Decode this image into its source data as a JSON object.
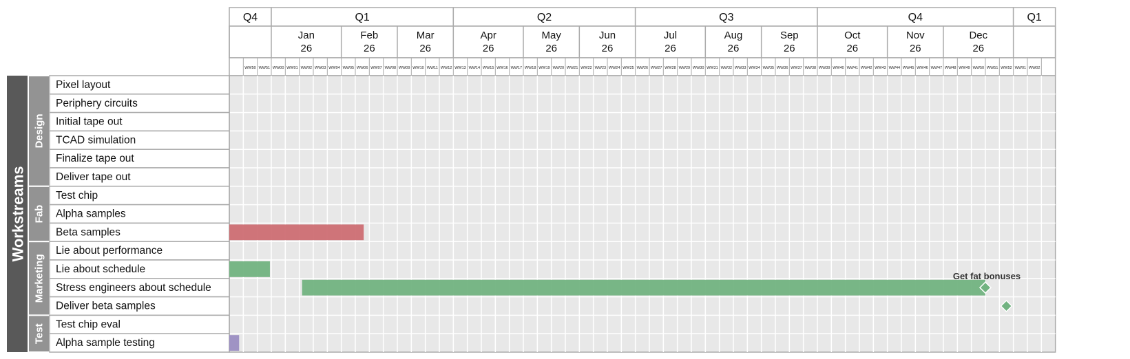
{
  "chart_data": {
    "type": "gantt",
    "row_label": "Workstreams",
    "quarters": [
      {
        "label": "Q4",
        "start": 0,
        "end": 3
      },
      {
        "label": "Q1",
        "start": 3,
        "end": 16
      },
      {
        "label": "Q2",
        "start": 16,
        "end": 29
      },
      {
        "label": "Q3",
        "start": 29,
        "end": 42
      },
      {
        "label": "Q4",
        "start": 42,
        "end": 56
      },
      {
        "label": "Q1",
        "start": 56,
        "end": 59
      }
    ],
    "months": [
      {
        "label": "Jan\n26",
        "start": 3,
        "end": 8
      },
      {
        "label": "Feb\n26",
        "start": 8,
        "end": 12
      },
      {
        "label": "Mar\n26",
        "start": 12,
        "end": 16
      },
      {
        "label": "Apr\n26",
        "start": 16,
        "end": 21
      },
      {
        "label": "May\n26",
        "start": 21,
        "end": 25
      },
      {
        "label": "Jun\n26",
        "start": 25,
        "end": 29
      },
      {
        "label": "Jul\n26",
        "start": 29,
        "end": 34
      },
      {
        "label": "Aug\n26",
        "start": 34,
        "end": 38
      },
      {
        "label": "Sep\n26",
        "start": 38,
        "end": 42
      },
      {
        "label": "Oct\n26",
        "start": 42,
        "end": 47
      },
      {
        "label": "Nov\n26",
        "start": 47,
        "end": 51
      },
      {
        "label": "Dec\n26",
        "start": 51,
        "end": 56
      }
    ],
    "weeks": [
      "",
      "WW50",
      "WW51",
      "WW00",
      "WW01",
      "WW02",
      "WW03",
      "WW04",
      "WW05",
      "WW06",
      "WW07",
      "WW08",
      "WW09",
      "WW10",
      "WW11",
      "WW12",
      "WW13",
      "WW14",
      "WW15",
      "WW16",
      "WW17",
      "WW18",
      "WW19",
      "WW20",
      "WW21",
      "WW22",
      "WW23",
      "WW24",
      "WW25",
      "WW26",
      "WW27",
      "WW28",
      "WW29",
      "WW30",
      "WW31",
      "WW32",
      "WW33",
      "WW34",
      "WW35",
      "WW36",
      "WW37",
      "WW38",
      "WW39",
      "WW40",
      "WW41",
      "WW42",
      "WW43",
      "WW44",
      "WW45",
      "WW46",
      "WW47",
      "WW48",
      "WW49",
      "WW50",
      "WW51",
      "WW52",
      "WW01",
      "WW02",
      ""
    ],
    "groups": [
      {
        "name": "Design",
        "tasks": [
          "Pixel layout",
          "Periphery circuits",
          "Initial tape out",
          "TCAD simulation",
          "Finalize tape out",
          "Deliver tape out"
        ]
      },
      {
        "name": "Fab",
        "tasks": [
          "Test chip",
          "Alpha samples",
          "Beta samples"
        ]
      },
      {
        "name": "Marketing",
        "tasks": [
          "Lie about performance",
          "Lie about schedule",
          "Stress engineers about schedule",
          "Deliver beta samples"
        ]
      },
      {
        "name": "Test",
        "tasks": [
          "Test chip eval",
          "Alpha sample testing"
        ]
      }
    ],
    "bars": [
      {
        "task": "Beta samples",
        "start": 0,
        "end": 9.6,
        "color": "#cd6e73"
      },
      {
        "task": "Lie about schedule",
        "start": 0,
        "end": 2.9,
        "color": "#72b381"
      },
      {
        "task": "Stress engineers about schedule",
        "start": 5.2,
        "end": 54,
        "color": "#72b381"
      },
      {
        "task": "Alpha sample testing",
        "start": 0,
        "end": 0.7,
        "color": "#9b8ec2"
      }
    ],
    "milestones": [
      {
        "task": "Stress engineers about schedule",
        "at": 54,
        "label": "Get fat bonuses",
        "color": "#72b381"
      },
      {
        "task": "Deliver beta samples",
        "at": 55.5,
        "label": "",
        "color": "#72b381"
      }
    ],
    "colors": {
      "grid_bg": "#e8e8e8",
      "grid_line": "#ffffff",
      "border": "#aaaaaa",
      "row_header": "#595959",
      "group_header": "#939393"
    }
  }
}
